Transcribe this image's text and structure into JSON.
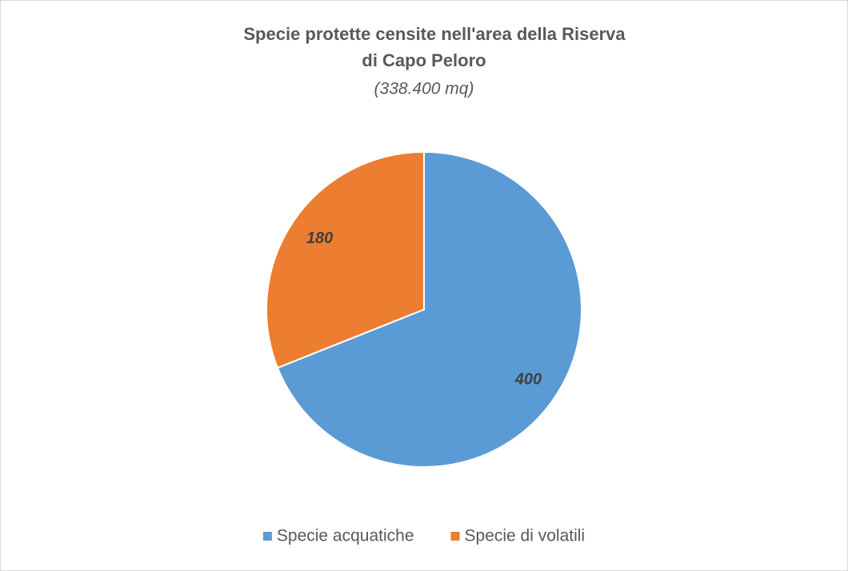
{
  "chart_data": {
    "type": "pie",
    "title": [
      "Specie protette censite nell'area della Riserva",
      "di Capo Peloro"
    ],
    "subtitle": "(338.400 mq)",
    "categories": [
      "Specie acquatiche",
      "Specie di volatili"
    ],
    "values": [
      400,
      180
    ],
    "colors": [
      "#5b9bd5",
      "#ed7d31"
    ],
    "legend": "bottom"
  }
}
